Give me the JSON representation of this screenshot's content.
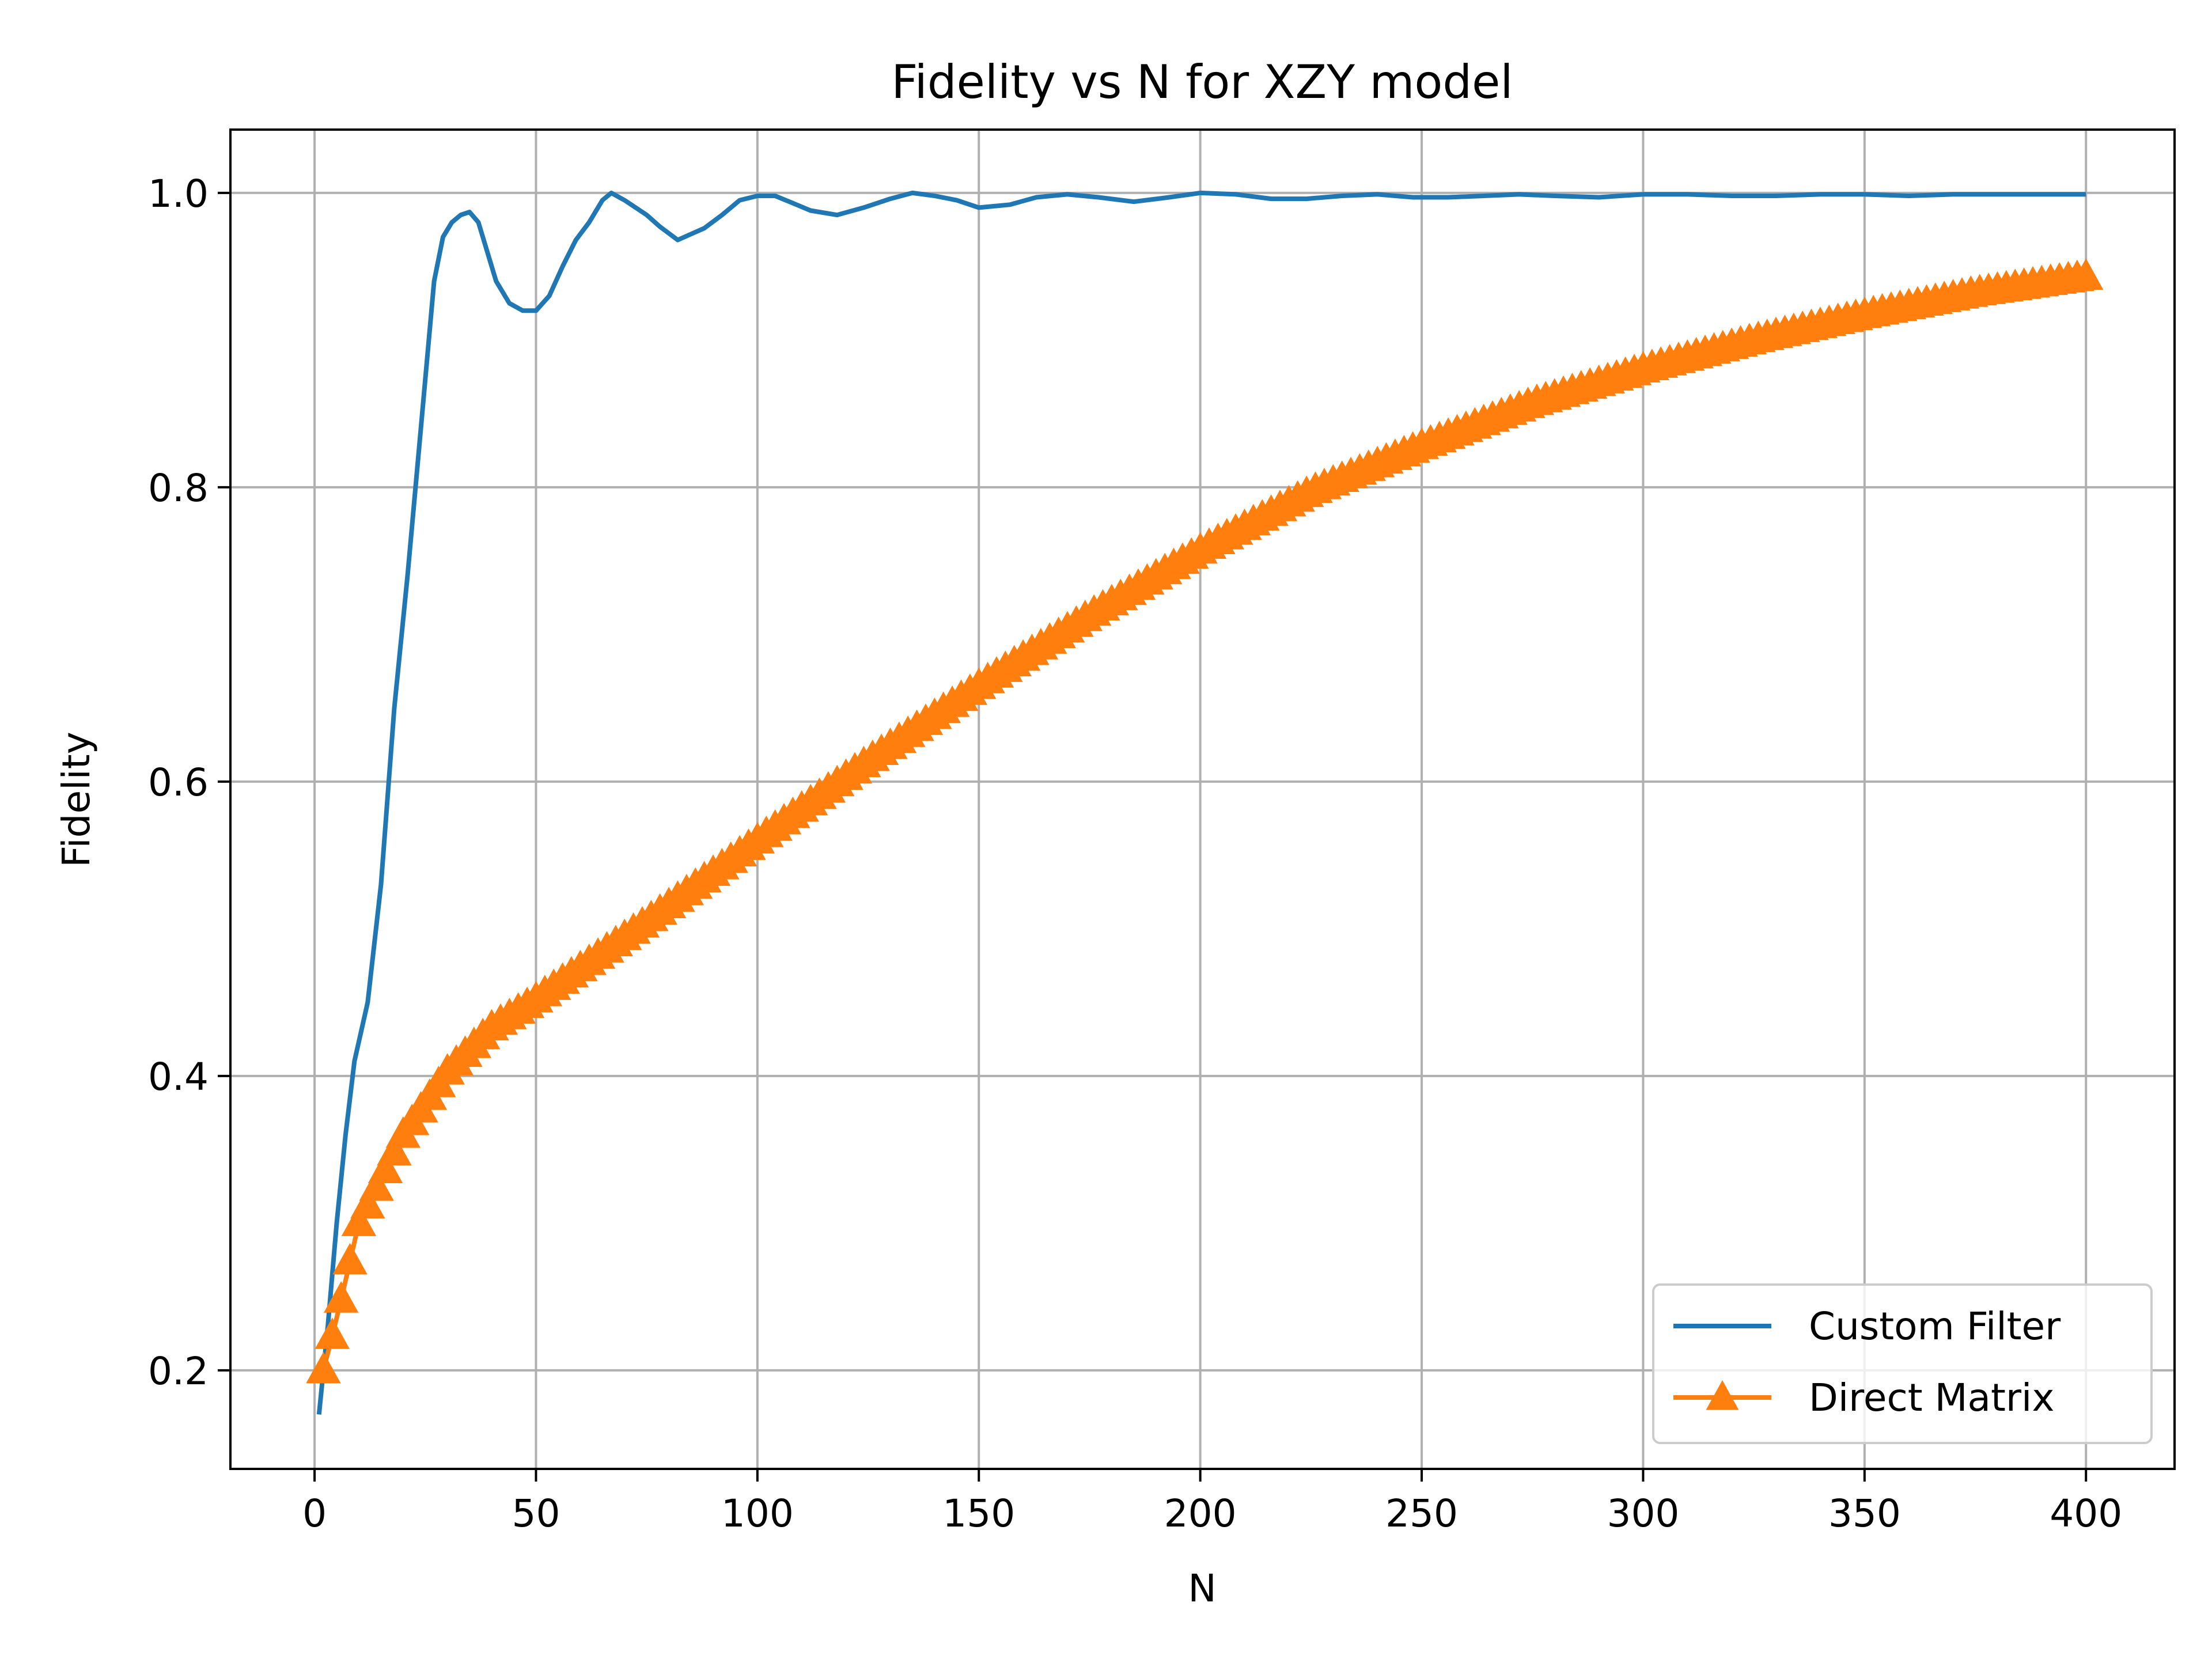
{
  "chart_data": {
    "type": "line",
    "title": "Fidelity vs N for XZY model",
    "xlabel": "N",
    "ylabel": "Fidelity",
    "xlim": [
      -19,
      420
    ],
    "ylim": [
      0.133,
      1.043
    ],
    "xticks": [
      0,
      50,
      100,
      150,
      200,
      250,
      300,
      350,
      400
    ],
    "xtick_labels": [
      "0",
      "50",
      "100",
      "150",
      "200",
      "250",
      "300",
      "350",
      "400"
    ],
    "yticks": [
      0.2,
      0.4,
      0.6,
      0.8,
      1.0
    ],
    "ytick_labels": [
      "0.2",
      "0.4",
      "0.6",
      "0.8",
      "1.0"
    ],
    "grid": true,
    "legend_position": "lower right",
    "series": [
      {
        "name": "Custom Filter",
        "color": "#1f77b4",
        "marker": "none",
        "points": [
          [
            1,
            0.17
          ],
          [
            3,
            0.23
          ],
          [
            5,
            0.3
          ],
          [
            7,
            0.36
          ],
          [
            9,
            0.41
          ],
          [
            12,
            0.45
          ],
          [
            15,
            0.53
          ],
          [
            18,
            0.65
          ],
          [
            21,
            0.74
          ],
          [
            24,
            0.84
          ],
          [
            27,
            0.94
          ],
          [
            29,
            0.97
          ],
          [
            31,
            0.98
          ],
          [
            33,
            0.985
          ],
          [
            35,
            0.987
          ],
          [
            37,
            0.98
          ],
          [
            39,
            0.96
          ],
          [
            41,
            0.94
          ],
          [
            44,
            0.925
          ],
          [
            47,
            0.92
          ],
          [
            50,
            0.92
          ],
          [
            53,
            0.93
          ],
          [
            56,
            0.95
          ],
          [
            59,
            0.968
          ],
          [
            62,
            0.98
          ],
          [
            65,
            0.995
          ],
          [
            67,
            1.0
          ],
          [
            70,
            0.995
          ],
          [
            75,
            0.985
          ],
          [
            78,
            0.977
          ],
          [
            82,
            0.968
          ],
          [
            85,
            0.972
          ],
          [
            88,
            0.976
          ],
          [
            92,
            0.985
          ],
          [
            96,
            0.995
          ],
          [
            100,
            0.998
          ],
          [
            104,
            0.998
          ],
          [
            108,
            0.993
          ],
          [
            112,
            0.988
          ],
          [
            118,
            0.985
          ],
          [
            124,
            0.99
          ],
          [
            130,
            0.996
          ],
          [
            135,
            1.0
          ],
          [
            140,
            0.998
          ],
          [
            145,
            0.995
          ],
          [
            150,
            0.99
          ],
          [
            157,
            0.992
          ],
          [
            163,
            0.997
          ],
          [
            170,
            0.999
          ],
          [
            177,
            0.997
          ],
          [
            185,
            0.994
          ],
          [
            193,
            0.997
          ],
          [
            200,
            1.0
          ],
          [
            208,
            0.999
          ],
          [
            216,
            0.996
          ],
          [
            224,
            0.996
          ],
          [
            232,
            0.998
          ],
          [
            240,
            0.999
          ],
          [
            248,
            0.997
          ],
          [
            256,
            0.997
          ],
          [
            264,
            0.998
          ],
          [
            272,
            0.999
          ],
          [
            280,
            0.998
          ],
          [
            290,
            0.997
          ],
          [
            300,
            0.999
          ],
          [
            310,
            0.999
          ],
          [
            320,
            0.998
          ],
          [
            330,
            0.998
          ],
          [
            340,
            0.999
          ],
          [
            350,
            0.999
          ],
          [
            360,
            0.998
          ],
          [
            370,
            0.999
          ],
          [
            380,
            0.999
          ],
          [
            390,
            0.999
          ],
          [
            400,
            0.999
          ]
        ]
      },
      {
        "name": "Direct Matrix",
        "color": "#ff7f0e",
        "marker": "triangle-up",
        "x_start": 2,
        "x_step": 2,
        "x_end": 400,
        "anchors": [
          [
            2,
            0.2
          ],
          [
            5,
            0.235
          ],
          [
            10,
            0.3
          ],
          [
            20,
            0.36
          ],
          [
            30,
            0.403
          ],
          [
            40,
            0.433
          ],
          [
            50,
            0.452
          ],
          [
            75,
            0.505
          ],
          [
            100,
            0.56
          ],
          [
            125,
            0.614
          ],
          [
            150,
            0.665
          ],
          [
            175,
            0.713
          ],
          [
            200,
            0.757
          ],
          [
            225,
            0.797
          ],
          [
            250,
            0.828
          ],
          [
            275,
            0.857
          ],
          [
            300,
            0.88
          ],
          [
            325,
            0.9
          ],
          [
            350,
            0.917
          ],
          [
            375,
            0.932
          ],
          [
            400,
            0.943
          ]
        ]
      }
    ]
  }
}
